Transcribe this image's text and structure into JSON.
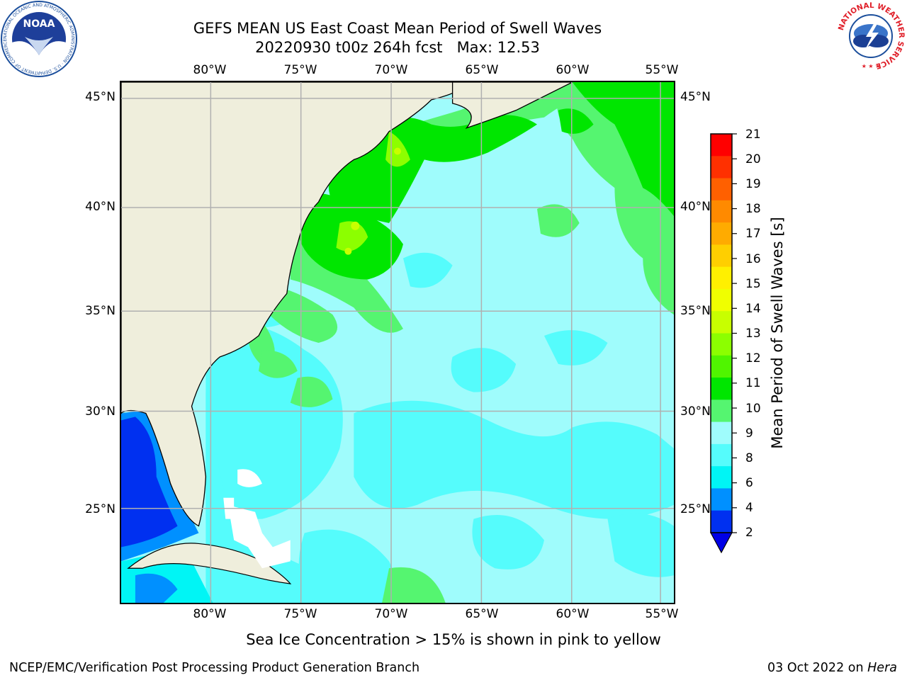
{
  "title": {
    "line1": "GEFS MEAN US East Coast Mean Period of Swell Waves",
    "line2": "20220930 t00z 264h fcst   Max: 12.53"
  },
  "map": {
    "lon_labels": [
      "80°W",
      "75°W",
      "70°W",
      "65°W",
      "60°W",
      "55°W"
    ],
    "lat_labels": [
      "45°N",
      "40°N",
      "35°N",
      "30°N",
      "25°N"
    ],
    "colors": {
      "land": "#efeedc",
      "grid": "#b0b0b0",
      "ocean_base": "#9ffcfc",
      "no_data": "#ffffff"
    }
  },
  "colorbar": {
    "label": "Mean Period of Swell Waves [s]",
    "ticks": [
      "21",
      "20",
      "19",
      "18",
      "17",
      "16",
      "15",
      "14",
      "13",
      "12",
      "11",
      "10",
      "9",
      "8",
      "6",
      "4",
      "2"
    ],
    "colors": [
      "#ff0000",
      "#ff3000",
      "#ff6000",
      "#ff8a00",
      "#ffab00",
      "#ffcf00",
      "#fff000",
      "#f0ff00",
      "#c8ff00",
      "#8cff00",
      "#50f500",
      "#00e600",
      "#55f570",
      "#9ffcfc",
      "#55fcfc",
      "#00f5f5",
      "#0090ff",
      "#0030f0"
    ],
    "under_color": "#0000e6"
  },
  "caption": "Sea Ice Concentration > 15% is shown in pink to yellow",
  "footer": {
    "left": "NCEP/EMC/Verification Post Processing Product Generation Branch",
    "right_date": "03 Oct 2022 on ",
    "right_machine": "Hera"
  },
  "logos": {
    "noaa_text": "NOAA",
    "noaa_ring": "NATIONAL OCEANIC AND ATMOSPHERIC ADMINISTRATION · U.S. DEPARTMENT OF COMMERCE",
    "nws_ring": "NATIONAL WEATHER SERVICE"
  }
}
